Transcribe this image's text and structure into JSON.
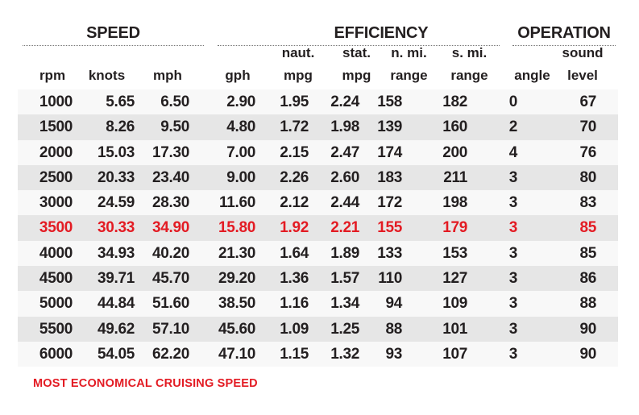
{
  "groups": [
    {
      "label": "SPEED"
    },
    {
      "label": "EFFICIENCY"
    },
    {
      "label": "OPERATION"
    }
  ],
  "columns": [
    {
      "top": "",
      "bottom": "rpm"
    },
    {
      "top": "",
      "bottom": "knots"
    },
    {
      "top": "",
      "bottom": "mph"
    },
    {
      "top": "",
      "bottom": "gph"
    },
    {
      "top": "naut.",
      "bottom": "mpg"
    },
    {
      "top": "stat.",
      "bottom": "mpg"
    },
    {
      "top": "n. mi.",
      "bottom": "range"
    },
    {
      "top": "s. mi.",
      "bottom": "range"
    },
    {
      "top": "",
      "bottom": "angle"
    },
    {
      "top": "sound",
      "bottom": "level"
    }
  ],
  "rows": [
    [
      "1000",
      "5.65",
      "6.50",
      "2.90",
      "1.95",
      "2.24",
      "158",
      "182",
      "0",
      "67"
    ],
    [
      "1500",
      "8.26",
      "9.50",
      "4.80",
      "1.72",
      "1.98",
      "139",
      "160",
      "2",
      "70"
    ],
    [
      "2000",
      "15.03",
      "17.30",
      "7.00",
      "2.15",
      "2.47",
      "174",
      "200",
      "4",
      "76"
    ],
    [
      "2500",
      "20.33",
      "23.40",
      "9.00",
      "2.26",
      "2.60",
      "183",
      "211",
      "3",
      "80"
    ],
    [
      "3000",
      "24.59",
      "28.30",
      "11.60",
      "2.12",
      "2.44",
      "172",
      "198",
      "3",
      "83"
    ],
    [
      "3500",
      "30.33",
      "34.90",
      "15.80",
      "1.92",
      "2.21",
      "155",
      "179",
      "3",
      "85"
    ],
    [
      "4000",
      "34.93",
      "40.20",
      "21.30",
      "1.64",
      "1.89",
      "133",
      "153",
      "3",
      "85"
    ],
    [
      "4500",
      "39.71",
      "45.70",
      "29.20",
      "1.36",
      "1.57",
      "110",
      "127",
      "3",
      "86"
    ],
    [
      "5000",
      "44.84",
      "51.60",
      "38.50",
      "1.16",
      "1.34",
      "94",
      "109",
      "3",
      "88"
    ],
    [
      "5500",
      "49.62",
      "57.10",
      "45.60",
      "1.09",
      "1.25",
      "88",
      "101",
      "3",
      "90"
    ],
    [
      "6000",
      "54.05",
      "62.20",
      "47.10",
      "1.15",
      "1.32",
      "93",
      "107",
      "3",
      "90"
    ]
  ],
  "highlight_row_index": 5,
  "colors": {
    "highlight": "#e31b23",
    "text": "#231f20",
    "row_light": "#f8f8f8",
    "row_dark": "#e6e6e6"
  },
  "footnote": "MOST ECONOMICAL CRUISING SPEED"
}
